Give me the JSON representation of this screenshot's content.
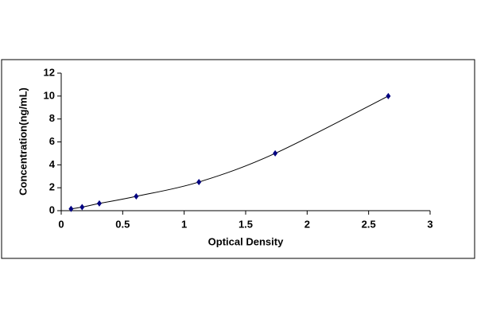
{
  "chart_data": {
    "type": "scatter",
    "x_label": "Optical Density",
    "y_label": "Concentration(ng/mL)",
    "x": [
      0.08,
      0.17,
      0.31,
      0.61,
      1.12,
      1.74,
      2.66
    ],
    "values": [
      0.16,
      0.31,
      0.63,
      1.25,
      2.5,
      5,
      10
    ],
    "color": "#000080",
    "line_color": "#000000",
    "xlim": [
      0,
      3
    ],
    "xticks": [
      0,
      0.5,
      1,
      1.5,
      2,
      2.5,
      3
    ],
    "ylim": [
      0,
      12
    ],
    "yticks": [
      0,
      2,
      4,
      6,
      8,
      10,
      12
    ],
    "grid": false
  }
}
